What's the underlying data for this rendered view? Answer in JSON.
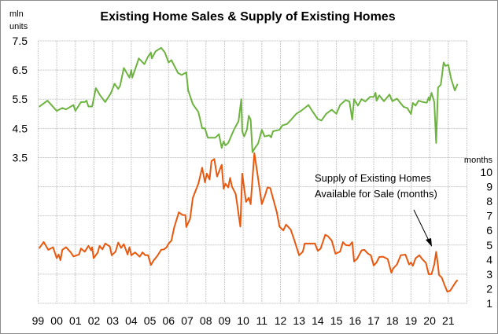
{
  "chart_data": {
    "type": "line",
    "title": "Existing Home Sales & Supply of Existing Homes",
    "left_axis": {
      "unit_label_line1": "mln",
      "unit_label_line2": "units",
      "ylim": [
        -1.5,
        7.5
      ],
      "tick_labels": [
        "3.5",
        "4.5",
        "5.5",
        "6.5",
        "7.5"
      ]
    },
    "right_axis": {
      "unit_label": "months",
      "ylim": [
        1,
        19
      ],
      "tick_labels": [
        "1",
        "2",
        "3",
        "4",
        "5",
        "6",
        "7",
        "8",
        "9",
        "10"
      ]
    },
    "x_axis": {
      "xlim": [
        1999,
        2022
      ],
      "tick_labels": [
        "99",
        "00",
        "01",
        "02",
        "03",
        "04",
        "05",
        "06",
        "07",
        "08",
        "09",
        "10",
        "11",
        "12",
        "13",
        "14",
        "15",
        "16",
        "17",
        "18",
        "19",
        "20",
        "21"
      ]
    },
    "grid": true,
    "annotation": {
      "line1": "Supply of Existing Homes",
      "line2": "Available  for Sale (months)",
      "arrow": true
    },
    "colors": {
      "sales": "#6db33f",
      "supply": "#e8580e",
      "grid": "#c8c8c8"
    },
    "series": [
      {
        "axis": "left",
        "color": "#6db33f",
        "x": [
          1999.05,
          1999.5,
          2000.0,
          2000.3,
          2000.5,
          2000.9,
          2001.0,
          2001.3,
          2001.5,
          2001.6,
          2001.7,
          2001.9,
          2002.1,
          2002.3,
          2002.6,
          2002.9,
          2003.1,
          2003.3,
          2003.4,
          2003.6,
          2003.9,
          2004.0,
          2004.05,
          2004.3,
          2004.4,
          2004.7,
          2004.9,
          2005.05,
          2005.1,
          2005.3,
          2005.6,
          2005.8,
          2006.0,
          2006.15,
          2006.5,
          2006.7,
          2006.95,
          2007.05,
          2007.3,
          2007.6,
          2007.8,
          2007.95,
          2008.1,
          2008.5,
          2008.7,
          2008.85,
          2008.95,
          2009.05,
          2009.2,
          2009.5,
          2009.75,
          2009.9,
          2009.95,
          2010.05,
          2010.2,
          2010.3,
          2010.4,
          2010.5,
          2010.65,
          2010.8,
          2011.0,
          2011.15,
          2011.4,
          2011.5,
          2011.6,
          2011.95,
          2012.1,
          2012.35,
          2012.55,
          2012.85,
          2013.1,
          2013.5,
          2013.7,
          2014.0,
          2014.2,
          2014.45,
          2014.75,
          2015.0,
          2015.2,
          2015.5,
          2015.7,
          2015.85,
          2015.95,
          2016.15,
          2016.35,
          2016.55,
          2016.8,
          2017.0,
          2017.1,
          2017.15,
          2017.3,
          2017.55,
          2017.85,
          2018.0,
          2018.25,
          2018.6,
          2018.8,
          2019.0,
          2019.1,
          2019.25,
          2019.4,
          2019.65,
          2019.85,
          2019.95,
          2020.0,
          2020.1,
          2020.25,
          2020.35,
          2020.45,
          2020.6,
          2020.75,
          2020.85,
          2021.0,
          2021.15,
          2021.35,
          2021.5
        ],
        "y": [
          5.24,
          5.45,
          5.1,
          5.2,
          5.15,
          5.3,
          5.1,
          5.4,
          5.4,
          5.45,
          5.25,
          5.25,
          5.88,
          5.66,
          5.4,
          5.7,
          6.03,
          5.85,
          5.97,
          6.57,
          6.24,
          6.5,
          6.24,
          6.7,
          6.9,
          6.7,
          6.96,
          7.1,
          6.9,
          7.14,
          7.26,
          7.1,
          6.76,
          6.84,
          6.4,
          6.33,
          6.42,
          5.8,
          5.33,
          5.06,
          4.5,
          4.5,
          4.18,
          4.18,
          4.3,
          3.83,
          4.05,
          3.92,
          4.0,
          4.45,
          4.75,
          5.5,
          4.4,
          4.22,
          4.45,
          4.93,
          4.8,
          3.68,
          3.85,
          3.98,
          4.45,
          4.22,
          4.26,
          4.19,
          4.4,
          4.45,
          4.6,
          4.65,
          4.78,
          5.0,
          5.1,
          5.3,
          5.1,
          4.82,
          4.77,
          5.0,
          5.14,
          5.0,
          5.3,
          5.47,
          5.42,
          4.8,
          5.5,
          5.28,
          5.5,
          5.42,
          5.58,
          5.58,
          5.72,
          5.45,
          5.63,
          5.43,
          5.66,
          5.43,
          5.52,
          5.24,
          5.2,
          4.99,
          5.37,
          5.28,
          5.45,
          5.4,
          5.38,
          5.56,
          5.45,
          5.72,
          5.4,
          4.0,
          5.9,
          6.0,
          6.76,
          6.64,
          6.68,
          6.2,
          5.8,
          6.02
        ]
      },
      {
        "axis": "right",
        "color": "#e8580e",
        "x": [
          1999.05,
          1999.3,
          1999.55,
          1999.8,
          2000.0,
          2000.1,
          2000.2,
          2000.3,
          2000.5,
          2000.75,
          2000.9,
          2001.2,
          2001.3,
          2001.5,
          2001.7,
          2001.85,
          2001.9,
          2001.98,
          2002.2,
          2002.3,
          2002.45,
          2002.6,
          2002.85,
          2002.95,
          2003.15,
          2003.3,
          2003.45,
          2003.6,
          2003.8,
          2003.9,
          2004.0,
          2004.2,
          2004.45,
          2004.6,
          2004.75,
          2004.9,
          2005.05,
          2005.2,
          2005.4,
          2005.6,
          2005.75,
          2005.9,
          2006.0,
          2006.15,
          2006.3,
          2006.55,
          2006.75,
          2006.9,
          2006.95,
          2007.15,
          2007.3,
          2007.6,
          2007.8,
          2007.95,
          2008.05,
          2008.2,
          2008.3,
          2008.45,
          2008.6,
          2008.85,
          2008.95,
          2009.05,
          2009.2,
          2009.3,
          2009.4,
          2009.6,
          2009.85,
          2009.95,
          2010.15,
          2010.3,
          2010.4,
          2010.6,
          2010.75,
          2011.0,
          2011.2,
          2011.3,
          2011.45,
          2011.8,
          2011.95,
          2012.15,
          2012.3,
          2012.55,
          2012.75,
          2013.0,
          2013.2,
          2013.3,
          2013.85,
          2014.0,
          2014.15,
          2014.4,
          2014.55,
          2014.75,
          2014.95,
          2015.2,
          2015.35,
          2015.5,
          2015.7,
          2015.85,
          2015.95,
          2016.1,
          2016.35,
          2016.5,
          2016.7,
          2016.85,
          2017.0,
          2017.15,
          2017.3,
          2017.5,
          2017.75,
          2017.95,
          2018.05,
          2018.25,
          2018.45,
          2018.7,
          2018.9,
          2019.0,
          2019.1,
          2019.25,
          2019.45,
          2019.6,
          2019.8,
          2019.95,
          2020.1,
          2020.25,
          2020.35,
          2020.45,
          2020.5,
          2020.65,
          2020.8,
          2020.95,
          2021.1,
          2021.25,
          2021.4,
          2021.5
        ],
        "y": [
          4.76,
          5.21,
          4.67,
          4.85,
          4.1,
          4.35,
          3.96,
          4.67,
          4.85,
          4.5,
          4.22,
          4.35,
          4.76,
          4.54,
          4.94,
          4.63,
          4.85,
          4.1,
          4.48,
          4.94,
          4.7,
          5.1,
          4.9,
          4.3,
          4.54,
          5.17,
          4.8,
          5.06,
          4.35,
          4.85,
          4.3,
          4.5,
          4.2,
          4.5,
          4.3,
          4.3,
          3.63,
          3.94,
          4.26,
          4.67,
          4.7,
          4.85,
          5.1,
          5.3,
          6.2,
          7.24,
          7.06,
          7.06,
          6.24,
          6.8,
          8.24,
          9.22,
          10.3,
          9.3,
          9.9,
          9.5,
          10.75,
          10.9,
          9.7,
          10.5,
          8.86,
          9.2,
          8.95,
          9.6,
          9.0,
          8.5,
          6.26,
          9.9,
          7.96,
          8.24,
          7.8,
          11.3,
          10.0,
          7.8,
          8.5,
          8.95,
          8.9,
          7.26,
          6.26,
          6.0,
          6.4,
          6.06,
          5.3,
          4.3,
          4.54,
          5.1,
          5.1,
          4.6,
          4.75,
          5.7,
          5.6,
          5.3,
          4.4,
          4.55,
          5.2,
          5.0,
          4.96,
          5.2,
          3.87,
          4.04,
          4.63,
          4.67,
          4.4,
          4.3,
          3.6,
          3.8,
          4.18,
          4.2,
          4.04,
          3.1,
          3.4,
          3.67,
          4.3,
          4.34,
          3.67,
          3.8,
          3.57,
          4.1,
          4.3,
          4.04,
          3.77,
          3.0,
          3.0,
          3.67,
          4.53,
          3.57,
          2.95,
          2.77,
          2.25,
          1.8,
          1.87,
          2.16,
          2.46,
          2.6
        ]
      }
    ]
  }
}
